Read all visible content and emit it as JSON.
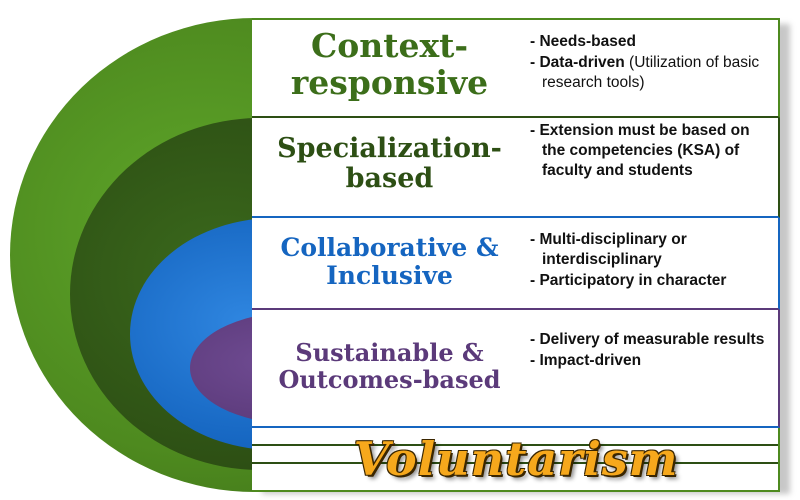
{
  "colors": {
    "outer_green": "#4e8a1f",
    "dark_green": "#2d4f14",
    "blue": "#1565c0",
    "purple": "#5b3a7a",
    "title_green": "#3c6e1a",
    "title_dark_green": "#2d4f14",
    "title_blue": "#1565c0",
    "title_purple": "#5b3a7a",
    "voluntarism": "#f6a81c"
  },
  "rows": [
    {
      "title": "Context-responsive",
      "title_line1": "Context-",
      "title_line2": "responsive",
      "bullets": [
        {
          "bold": "- Needs-based",
          "rest": ""
        },
        {
          "bold": "- Data-driven",
          "rest": " (Utilization of basic research  tools)"
        }
      ]
    },
    {
      "title_line1": "Specialization-",
      "title_line2": "based",
      "bullets": [
        {
          "bold": "- Extension must be based on the competencies (KSA) of faculty and students",
          "rest": ""
        }
      ]
    },
    {
      "title_line1": "Collaborative &",
      "title_line2": "Inclusive",
      "bullets": [
        {
          "bold": "- Multi-disciplinary or interdisciplinary",
          "rest": ""
        },
        {
          "bold": "- Participatory in character",
          "rest": ""
        }
      ]
    },
    {
      "title_line1": "Sustainable &",
      "title_line2": "Outcomes-based",
      "bullets": [
        {
          "bold": "- Delivery of measurable results",
          "rest": ""
        },
        {
          "bold": "- Impact-driven",
          "rest": ""
        }
      ]
    }
  ],
  "footer": {
    "label": "Voluntarism"
  }
}
